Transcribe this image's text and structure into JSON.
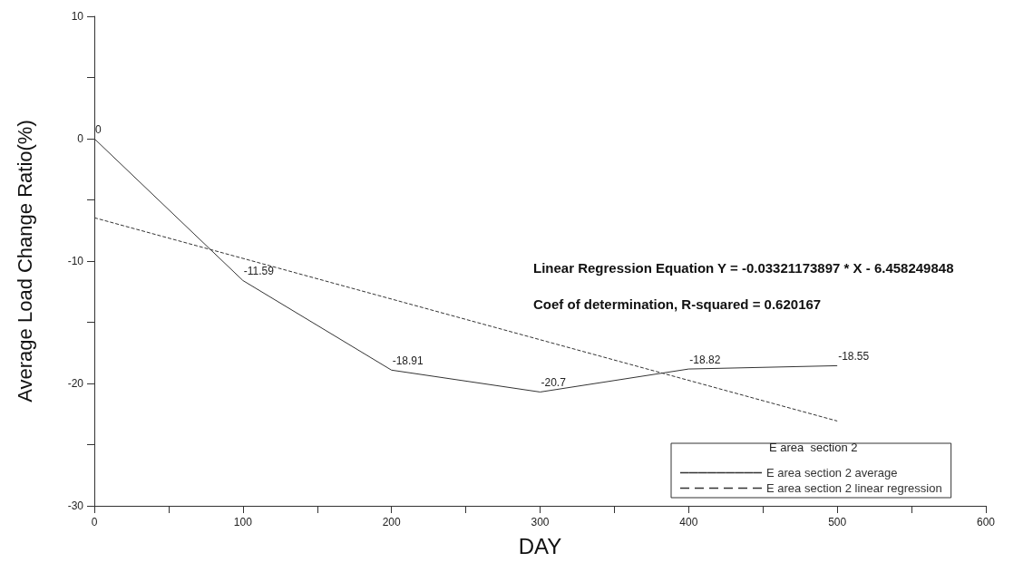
{
  "chart_data": {
    "type": "line",
    "xlabel": "DAY",
    "ylabel": "Average Load Change Ratio(%)",
    "legend_title": "E area  section 2",
    "legend": "bottom right",
    "marker": "none",
    "annotations": [
      "Linear Regression Equation Y = -0.03321173897 * X - 6.458249848",
      "Coef of determination, R-squared = 0.620167"
    ],
    "xlim": [
      0,
      600
    ],
    "xticks": [
      0,
      {
        "value": 50,
        "label": null
      },
      100,
      {
        "value": 150,
        "label": null
      },
      200,
      {
        "value": 250,
        "label": null
      },
      300,
      {
        "value": 350,
        "label": null
      },
      400,
      {
        "value": 450,
        "label": null
      },
      500,
      {
        "value": 550,
        "label": null
      },
      600
    ],
    "ylim": [
      -30,
      10
    ],
    "yticks": [
      -30,
      {
        "value": -25,
        "label": null
      },
      -20,
      {
        "value": -15,
        "label": null
      },
      -10,
      {
        "value": -5,
        "label": null
      },
      0,
      {
        "value": 5,
        "label": null
      },
      10
    ],
    "x": [
      0,
      100,
      200,
      300,
      400,
      500
    ],
    "series": [
      {
        "name": "E area section 2 average",
        "color": "#333333",
        "line_style": "solid",
        "values": [
          0,
          -11.59,
          -18.91,
          -20.7,
          -18.82,
          -18.55
        ],
        "value_labels": [
          "0",
          "-11.59",
          "-18.91",
          "-20.7",
          "-18.82",
          "-18.55"
        ]
      },
      {
        "name": "E area section 2 linear regression",
        "color": "#333333",
        "line_style": "dashed",
        "x": [
          0,
          500
        ],
        "values": [
          -6.46,
          -23.07
        ]
      }
    ]
  }
}
